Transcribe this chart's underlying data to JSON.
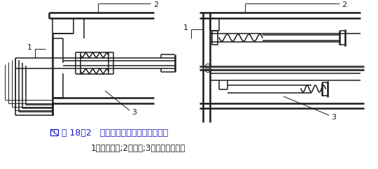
{
  "title_line1": "图 18－2   冷却系统用波纹补偿器示意图",
  "title_line2": "1－冷却水管;2－炉壳;3－波纹补偿器。",
  "bg_color": "#ffffff",
  "line_color": "#1a1a1a",
  "title_color": "#1a1acc",
  "subtitle_color": "#1a1a1a",
  "fig_width": 5.4,
  "fig_height": 2.42,
  "dpi": 100
}
